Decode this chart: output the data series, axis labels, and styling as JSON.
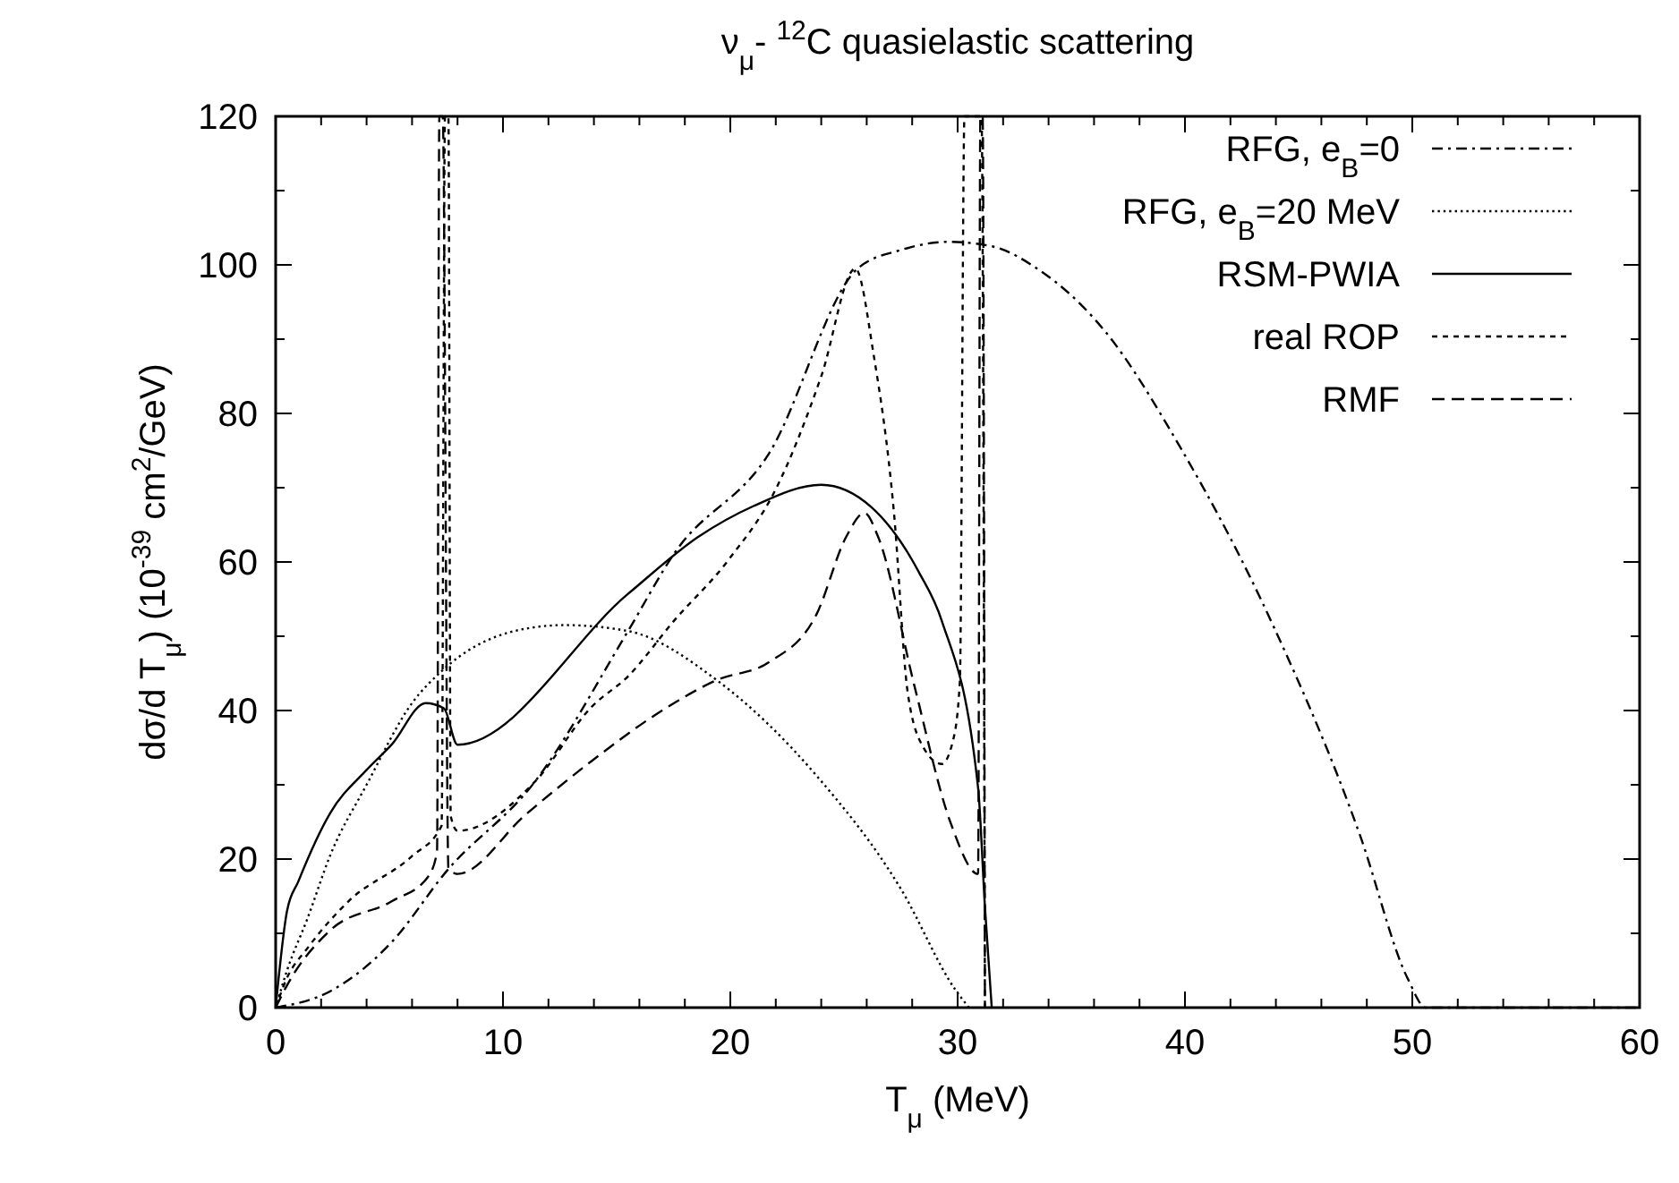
{
  "chart_data": {
    "type": "line",
    "title": "ν$_{μ}$- $^{12}$C quasielastic scattering",
    "xlabel": "T$_{μ}$ (MeV)",
    "ylabel": "dσ/d T$_{μ}$) (10$^{-39}$ cm$^{2}$/GeV)",
    "xlim": [
      0,
      60
    ],
    "ylim": [
      0,
      120
    ],
    "xticks": [
      0,
      {
        "value": 2,
        "label": null
      },
      {
        "value": 4,
        "label": null
      },
      {
        "value": 6,
        "label": null
      },
      {
        "value": 8,
        "label": null
      },
      10,
      {
        "value": 12,
        "label": null
      },
      {
        "value": 14,
        "label": null
      },
      {
        "value": 16,
        "label": null
      },
      {
        "value": 18,
        "label": null
      },
      20,
      {
        "value": 22,
        "label": null
      },
      {
        "value": 24,
        "label": null
      },
      {
        "value": 26,
        "label": null
      },
      {
        "value": 28,
        "label": null
      },
      30,
      {
        "value": 32,
        "label": null
      },
      {
        "value": 34,
        "label": null
      },
      {
        "value": 36,
        "label": null
      },
      {
        "value": 38,
        "label": null
      },
      40,
      {
        "value": 42,
        "label": null
      },
      {
        "value": 44,
        "label": null
      },
      {
        "value": 46,
        "label": null
      },
      {
        "value": 48,
        "label": null
      },
      50,
      {
        "value": 52,
        "label": null
      },
      {
        "value": 54,
        "label": null
      },
      {
        "value": 56,
        "label": null
      },
      {
        "value": 58,
        "label": null
      },
      60
    ],
    "yticks": [
      0,
      {
        "value": 10,
        "label": null
      },
      20,
      {
        "value": 30,
        "label": null
      },
      40,
      {
        "value": 50,
        "label": null
      },
      60,
      {
        "value": 70,
        "label": null
      },
      80,
      {
        "value": 90,
        "label": null
      },
      100,
      {
        "value": 110,
        "label": null
      },
      120
    ],
    "grid": false,
    "legend": "top right",
    "marker": "none",
    "series": [
      {
        "name": "RFG, e$_{B}$=0",
        "color": "#000000",
        "line_style": "dashdot",
        "x": [
          0,
          2.4,
          5.1,
          7.5,
          11.4,
          15.5,
          17.5,
          21.7,
          25.6,
          27.5,
          29.6,
          31.5,
          33.5,
          36.5,
          39.8,
          43.9,
          47.7,
          49.8,
          50.6,
          60
        ],
        "values": [
          0,
          2.2,
          8.8,
          18.3,
          30.4,
          50.7,
          61,
          74.6,
          99.5,
          102,
          103.1,
          102.5,
          99.5,
          91,
          75.4,
          51.3,
          23.2,
          3.9,
          0,
          0
        ]
      },
      {
        "name": "RFG, e$_{B}$=20 MeV",
        "color": "#000000",
        "line_style": "dotted",
        "x": [
          0,
          0.5,
          1.4,
          2.4,
          4,
          6,
          7.3,
          10.5,
          12.7,
          15.5,
          19.4,
          23.8,
          27.5,
          29.9,
          30.5
        ],
        "values": [
          0,
          5,
          12,
          20.5,
          30,
          41,
          45.3,
          50.7,
          51.5,
          50.7,
          44.1,
          31.2,
          16,
          2.4,
          0
        ]
      },
      {
        "name": "RSM-PWIA",
        "color": "#000000",
        "line_style": "solid",
        "x": [
          0,
          0.5,
          1,
          2.4,
          4,
          5.1,
          6.6,
          7.4,
          8,
          15.5,
          18.6,
          21,
          24,
          26.2,
          28.3,
          29.3,
          30.9,
          31.2,
          31.5
        ],
        "values": [
          0,
          13,
          17,
          26.2,
          32,
          35.4,
          41,
          40.3,
          35.4,
          55.7,
          63.4,
          67.5,
          70.4,
          67.4,
          58.6,
          52.1,
          29.6,
          13.6,
          0
        ]
      },
      {
        "name": "real ROP",
        "color": "#000000",
        "line_style": "dotted_dense",
        "x": [
          0,
          0.5,
          1.4,
          3.2,
          6,
          7.3,
          7.45,
          7.6,
          7.7,
          8,
          11.4,
          13.9,
          15.5,
          17.5,
          19.9,
          22,
          24,
          25.5,
          26.3,
          27.2,
          27.8,
          28.5,
          29.3,
          29.8,
          30.1,
          30.3,
          31.05,
          31.2
        ],
        "values": [
          0,
          4,
          8,
          14.3,
          20.4,
          24.5,
          120,
          120,
          25.8,
          23.8,
          30.4,
          40.5,
          44.6,
          52,
          60.2,
          69.8,
          85,
          99.5,
          88,
          66.6,
          42.5,
          35,
          32.8,
          36,
          44,
          120,
          120,
          0
        ]
      },
      {
        "name": "RMF",
        "color": "#000000",
        "line_style": "dashed",
        "x": [
          0,
          0.5,
          2.4,
          5.1,
          6.7,
          7.1,
          7.2,
          7.35,
          7.6,
          8,
          11,
          13.9,
          17,
          19.4,
          21.7,
          23.8,
          25.1,
          25.9,
          26.5,
          28.1,
          29.7,
          30.9,
          31,
          31.1,
          31.2
        ],
        "values": [
          0,
          3,
          10.4,
          14.3,
          17.6,
          21,
          120,
          120,
          18.8,
          18,
          26,
          33.2,
          40,
          44.1,
          46.5,
          53,
          63.4,
          66.6,
          63.4,
          43.3,
          24.8,
          18,
          120,
          120,
          0
        ]
      }
    ]
  }
}
